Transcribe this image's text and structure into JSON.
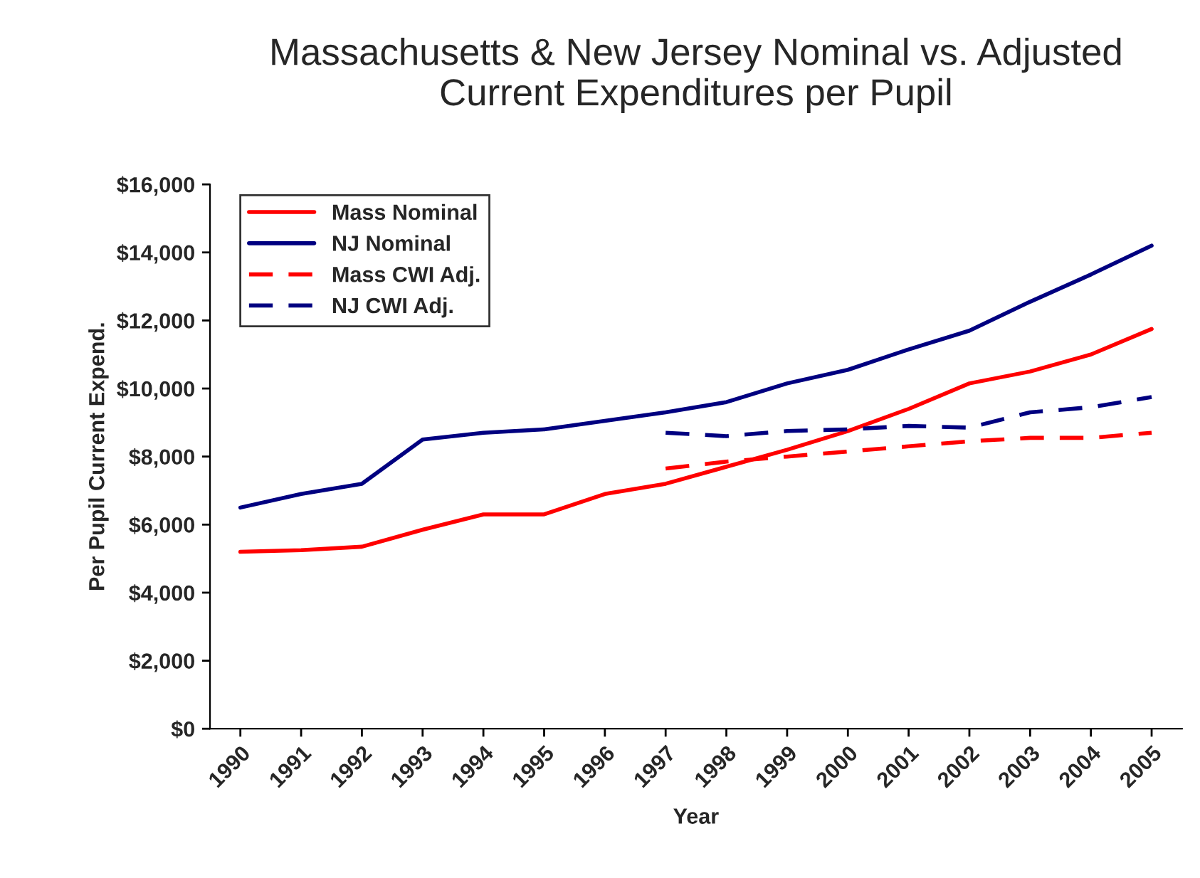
{
  "chart_data": {
    "type": "line",
    "title": "Massachusetts & New Jersey Nominal vs. Adjusted\nCurrent Expenditures per Pupil",
    "xlabel": "Year",
    "ylabel": "Per Pupil Current Expend.",
    "categories": [
      "1990",
      "1991",
      "1992",
      "1993",
      "1994",
      "1995",
      "1996",
      "1997",
      "1998",
      "1999",
      "2000",
      "2001",
      "2002",
      "2003",
      "2004",
      "2005"
    ],
    "series": [
      {
        "name": "Mass Nominal",
        "color": "#ff0000",
        "line_style": "solid",
        "values": [
          5200,
          5250,
          5350,
          5850,
          6300,
          6300,
          6900,
          7200,
          7700,
          8200,
          8750,
          9400,
          10150,
          10500,
          11000,
          11750
        ]
      },
      {
        "name": "NJ Nominal",
        "color": "#000080",
        "line_style": "solid",
        "values": [
          6500,
          6900,
          7200,
          8500,
          8700,
          8800,
          9050,
          9300,
          9600,
          10150,
          10550,
          11150,
          11700,
          12550,
          13350,
          14200
        ]
      },
      {
        "name": "Mass CWI Adj.",
        "color": "#ff0000",
        "line_style": "dashed",
        "values": [
          null,
          null,
          null,
          null,
          null,
          null,
          null,
          7650,
          7850,
          8000,
          8150,
          8300,
          8450,
          8550,
          8550,
          8700
        ]
      },
      {
        "name": "NJ CWI Adj.",
        "color": "#000080",
        "line_style": "dashed",
        "values": [
          null,
          null,
          null,
          null,
          null,
          null,
          null,
          8700,
          8600,
          8750,
          8800,
          8900,
          8850,
          9300,
          9450,
          9750
        ]
      }
    ],
    "ylim": [
      0,
      16000
    ],
    "yticks": [
      {
        "value": 0,
        "label": "$0"
      },
      {
        "value": 2000,
        "label": "$2,000"
      },
      {
        "value": 4000,
        "label": "$4,000"
      },
      {
        "value": 6000,
        "label": "$6,000"
      },
      {
        "value": 8000,
        "label": "$8,000"
      },
      {
        "value": 10000,
        "label": "$10,000"
      },
      {
        "value": 12000,
        "label": "$12,000"
      },
      {
        "value": 14000,
        "label": "$14,000"
      },
      {
        "value": 16000,
        "label": "$16,000"
      }
    ],
    "grid": false,
    "legend": "top left",
    "marker": "none"
  }
}
